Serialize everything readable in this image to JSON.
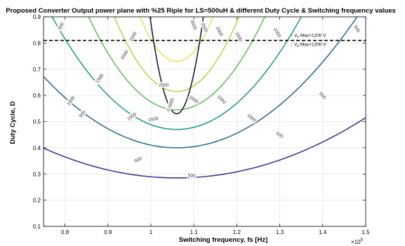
{
  "chart_data": {
    "type": "contour",
    "title": "Proposed Converter Output power plane with %25 Riple for LS=500uH & different Duty Cycle & Switching frequency values",
    "xlabel": "Switching frequency, fs [Hz]",
    "ylabel": "Duty Cycle, D",
    "x_exponent_label": "×10",
    "x_exponent_power": "5",
    "xlim": [
      0.75,
      1.5
    ],
    "ylim": [
      0.1,
      0.9
    ],
    "xticks": [
      0.8,
      0.9,
      1,
      1.1,
      1.2,
      1.3,
      1.4,
      1.5
    ],
    "xtick_labels": [
      "0.8",
      "0.9",
      "1",
      "1.1",
      "1.2",
      "1.3",
      "1.4",
      "1.5"
    ],
    "yticks": [
      0.1,
      0.2,
      0.3,
      0.4,
      0.5,
      0.6,
      0.7,
      0.8,
      0.9
    ],
    "ytick_labels": [
      "0.1",
      "0.2",
      "0.3",
      "0.4",
      "0.5",
      "0.6",
      "0.7",
      "0.8",
      "0.9"
    ],
    "center_x": 1.06,
    "levels": [
      {
        "label": "500",
        "color": "#3f3a8f",
        "min_y": 0.285,
        "half_width_at_top": 0.72
      },
      {
        "label": "1000",
        "color": "#2f6e8f",
        "min_y": 0.4,
        "half_width_at_top": 0.42
      },
      {
        "label": "1500",
        "color": "#2a9a8e",
        "min_y": 0.47,
        "half_width_at_top": 0.29
      },
      {
        "label": "2000",
        "color": "#69be5e",
        "min_y": 0.545,
        "half_width_at_top": 0.205
      },
      {
        "label": "2500",
        "color": "#bcd64a",
        "min_y": 0.615,
        "half_width_at_top": 0.145
      },
      {
        "label": "3000",
        "color": "#e8e45c",
        "min_y": 0.73,
        "half_width_at_top": 0.085
      }
    ],
    "boundary_curve": {
      "label": "0.0005",
      "color": "#1c1c40",
      "min_y": 0.53,
      "half_width_at_top": 0.062
    },
    "threshold_line": {
      "y": 0.81,
      "above_label": "V",
      "above_sub": "o",
      "above_suffix": " Max>1200 V",
      "below_label": "V",
      "below_sub": "o",
      "below_suffix": " Max<1200 V"
    },
    "contour_labels": [
      {
        "text": "500",
        "x": 0.79,
        "y": 0.865,
        "rot": -62
      },
      {
        "text": "1000",
        "x": 0.813,
        "y": 0.58,
        "rot": -55
      },
      {
        "text": "500",
        "x": 0.84,
        "y": 0.53,
        "rot": -52
      },
      {
        "text": "1500",
        "x": 0.88,
        "y": 0.665,
        "rot": -55
      },
      {
        "text": "2000",
        "x": 0.938,
        "y": 0.755,
        "rot": -58
      },
      {
        "text": "1000",
        "x": 0.955,
        "y": 0.52,
        "rot": -35
      },
      {
        "text": "500",
        "x": 0.97,
        "y": 0.355,
        "rot": -25
      },
      {
        "text": "2500",
        "x": 0.958,
        "y": 0.825,
        "rot": -62
      },
      {
        "text": "2500",
        "x": 1.03,
        "y": 0.64,
        "rot": 0
      },
      {
        "text": "1500",
        "x": 1.005,
        "y": 0.51,
        "rot": -10
      },
      {
        "text": "2000",
        "x": 1.1,
        "y": 0.585,
        "rot": 35
      },
      {
        "text": "1500",
        "x": 1.165,
        "y": 0.585,
        "rot": 45
      },
      {
        "text": "1000",
        "x": 1.235,
        "y": 0.515,
        "rot": 40
      },
      {
        "text": "500",
        "x": 1.095,
        "y": 0.295,
        "rot": 5
      },
      {
        "text": "500",
        "x": 1.3,
        "y": 0.45,
        "rot": 35
      },
      {
        "text": "500",
        "x": 1.4,
        "y": 0.6,
        "rot": 50
      },
      {
        "text": "1000",
        "x": 1.295,
        "y": 0.84,
        "rot": 60
      },
      {
        "text": "1500",
        "x": 1.205,
        "y": 0.825,
        "rot": 62
      },
      {
        "text": "2000",
        "x": 1.16,
        "y": 0.845,
        "rot": 62
      },
      {
        "text": "2500",
        "x": 1.125,
        "y": 0.86,
        "rot": 65
      },
      {
        "text": "3000",
        "x": 1.1,
        "y": 0.87,
        "rot": 68
      },
      {
        "text": "500",
        "x": 1.48,
        "y": 0.855,
        "rot": 60
      },
      {
        "text": "0.0005",
        "x": 1.045,
        "y": 0.565,
        "rot": -70
      }
    ],
    "grid": true,
    "legend": "none"
  }
}
